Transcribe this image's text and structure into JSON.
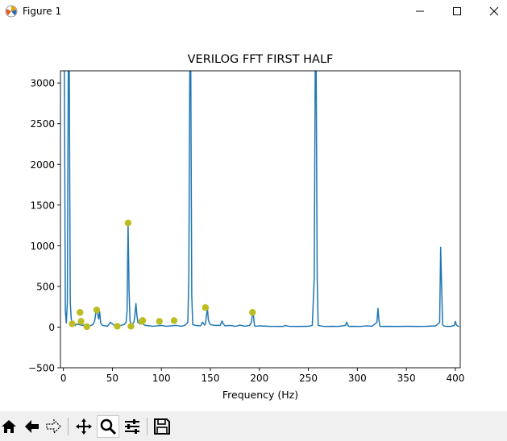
{
  "window": {
    "title": "Figure 1"
  },
  "toolbar": {
    "buttons": [
      "home-icon",
      "back-icon",
      "forward-icon",
      "pan-icon",
      "zoom-icon",
      "configure-subplots-icon",
      "save-icon"
    ]
  },
  "colors": {
    "line": "#1f77b4",
    "markers": "#bcbd22"
  },
  "chart_data": {
    "type": "line",
    "title": "VERILOG FFT FIRST HALF",
    "xlabel": "Frequency (Hz)",
    "ylabel": "",
    "xlim": [
      -3,
      405
    ],
    "ylim": [
      -500,
      3150
    ],
    "xticks": [
      0,
      50,
      100,
      150,
      200,
      250,
      300,
      350,
      400
    ],
    "yticks": [
      -500,
      0,
      500,
      1000,
      1500,
      2000,
      2500,
      3000
    ],
    "grid": false,
    "series": [
      {
        "values_x": [
          0,
          1,
          2,
          3,
          4,
          5,
          6,
          7,
          8,
          10,
          12,
          14,
          16,
          18,
          20,
          22,
          24,
          26,
          28,
          30,
          32,
          33,
          34,
          35,
          36,
          37,
          38,
          40,
          45,
          48,
          52,
          55,
          58,
          62,
          64,
          65,
          66,
          67,
          68,
          69,
          70,
          72,
          73,
          74,
          75,
          76,
          78,
          80,
          82,
          84,
          88,
          92,
          96,
          100,
          105,
          110,
          115,
          120,
          124,
          127,
          128,
          129,
          130,
          131,
          132,
          135,
          140,
          142,
          144,
          145,
          146,
          147,
          148,
          150,
          155,
          160,
          161,
          162,
          163,
          165,
          170,
          175,
          178,
          180,
          185,
          190,
          192,
          193,
          194,
          195,
          196,
          200,
          210,
          220,
          225,
          226,
          230,
          240,
          250,
          254,
          256,
          257,
          258,
          259,
          260,
          262,
          265,
          270,
          275,
          280,
          285,
          288,
          289,
          290,
          291,
          292,
          295,
          300,
          305,
          310,
          315,
          320,
          321,
          322,
          323,
          324,
          330,
          340,
          350,
          360,
          370,
          380,
          384,
          385,
          386,
          387,
          388,
          390,
          395,
          399,
          400,
          401,
          402,
          403,
          404
        ],
        "values_y": [
          3150,
          3150,
          200,
          50,
          300,
          3150,
          3150,
          300,
          100,
          30,
          20,
          40,
          30,
          25,
          20,
          30,
          20,
          15,
          20,
          30,
          80,
          170,
          200,
          160,
          100,
          190,
          50,
          20,
          10,
          60,
          20,
          15,
          20,
          30,
          60,
          200,
          1280,
          450,
          80,
          30,
          40,
          60,
          150,
          290,
          150,
          60,
          40,
          70,
          30,
          20,
          15,
          10,
          15,
          20,
          10,
          15,
          20,
          10,
          20,
          60,
          600,
          3150,
          3150,
          400,
          30,
          20,
          15,
          60,
          25,
          40,
          140,
          230,
          80,
          30,
          20,
          20,
          50,
          75,
          40,
          15,
          20,
          10,
          15,
          25,
          10,
          20,
          60,
          180,
          140,
          20,
          10,
          15,
          10,
          8,
          10,
          20,
          10,
          8,
          10,
          20,
          600,
          3150,
          3150,
          600,
          20,
          15,
          10,
          8,
          10,
          8,
          15,
          20,
          60,
          40,
          10,
          8,
          10,
          8,
          10,
          15,
          10,
          60,
          230,
          90,
          10,
          8,
          10,
          8,
          10,
          8,
          10,
          15,
          60,
          980,
          500,
          30,
          15,
          10,
          8,
          20,
          70,
          30,
          15,
          10,
          8
        ]
      }
    ],
    "markers": {
      "x": [
        9,
        17,
        18,
        24,
        34,
        55,
        66,
        69,
        80,
        81,
        98,
        113,
        145,
        193
      ],
      "y": [
        40,
        180,
        70,
        5,
        210,
        10,
        1280,
        10,
        70,
        80,
        70,
        80,
        240,
        180
      ]
    }
  }
}
